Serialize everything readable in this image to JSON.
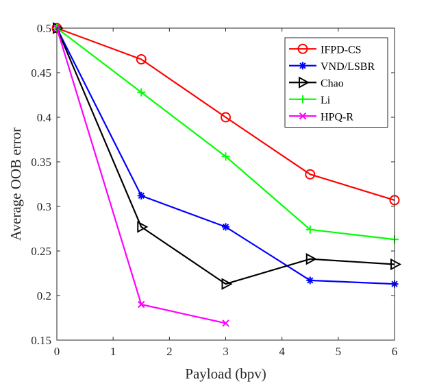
{
  "chart_data": {
    "type": "line",
    "title": "",
    "xlabel": "Payload (bpv)",
    "ylabel": "Average OOB error",
    "xlim": [
      0,
      6
    ],
    "ylim": [
      0.15,
      0.5
    ],
    "xticks": [
      0,
      1,
      2,
      3,
      4,
      5,
      6
    ],
    "yticks": [
      0.15,
      0.2,
      0.25,
      0.3,
      0.35,
      0.4,
      0.45,
      0.5
    ],
    "xtick_labels": [
      "0",
      "1",
      "2",
      "3",
      "4",
      "5",
      "6"
    ],
    "ytick_labels": [
      "0.15",
      "0.2",
      "0.25",
      "0.3",
      "0.35",
      "0.4",
      "0.45",
      "0.5"
    ],
    "grid": false,
    "legend_position": "top-right",
    "series": [
      {
        "name": "IFPD-CS",
        "color": "#ff0000",
        "marker": "circle",
        "x": [
          0,
          1.5,
          3,
          4.5,
          6
        ],
        "y": [
          0.5,
          0.465,
          0.4,
          0.336,
          0.307
        ]
      },
      {
        "name": "VND/LSBR",
        "color": "#0000ff",
        "marker": "asterisk",
        "x": [
          0,
          1.5,
          3,
          4.5,
          6
        ],
        "y": [
          0.5,
          0.312,
          0.277,
          0.217,
          0.213
        ]
      },
      {
        "name": "Chao",
        "color": "#000000",
        "marker": "triangle-right",
        "x": [
          0,
          1.5,
          3,
          4.5,
          6
        ],
        "y": [
          0.5,
          0.277,
          0.213,
          0.241,
          0.235
        ]
      },
      {
        "name": "Li",
        "color": "#00ff00",
        "marker": "plus",
        "x": [
          0,
          1.5,
          3,
          4.5,
          6
        ],
        "y": [
          0.5,
          0.428,
          0.356,
          0.274,
          0.263
        ]
      },
      {
        "name": "HPQ-R",
        "color": "#ff00ff",
        "marker": "cross",
        "x": [
          0,
          1.5,
          3
        ],
        "y": [
          0.5,
          0.19,
          0.169
        ]
      }
    ]
  }
}
